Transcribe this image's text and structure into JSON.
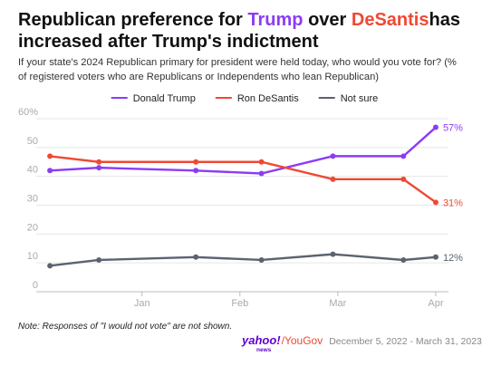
{
  "chart_data": {
    "type": "line",
    "title_parts": [
      "Republican preference for ",
      "Trump",
      " over ",
      "DeSantis",
      " has increased after Trump's indictment"
    ],
    "subtitle": "If your state's 2024 Republican primary for president were held today, who would you vote for? (% of registered voters who are Republicans or Independents who lean Republican)",
    "x": [
      0.06,
      0.56,
      1.55,
      2.22,
      2.95,
      3.67,
      4.0
    ],
    "xlim": [
      -0.08,
      4.13
    ],
    "xticks": [
      {
        "value": 1,
        "label": "Jan"
      },
      {
        "value": 2,
        "label": "Feb"
      },
      {
        "value": 3,
        "label": "Mar"
      },
      {
        "value": 4,
        "label": "Apr"
      }
    ],
    "ylim": [
      0,
      60
    ],
    "yticks": [
      0,
      10,
      20,
      30,
      40,
      50,
      {
        "value": 60,
        "label": "60%"
      }
    ],
    "grid": true,
    "legend": "top",
    "series": [
      {
        "name": "Donald Trump",
        "color": "#8b3cf6",
        "values": [
          42,
          43,
          42,
          41,
          47,
          47,
          57
        ],
        "value_labels": [
          null,
          null,
          null,
          null,
          null,
          null,
          "57%"
        ]
      },
      {
        "name": "Ron DeSantis",
        "color": "#ef4934",
        "values": [
          47,
          45,
          45,
          45,
          39,
          39,
          31
        ],
        "value_labels": [
          null,
          null,
          null,
          null,
          null,
          null,
          "31%"
        ]
      },
      {
        "name": "Not sure",
        "color": "#5c6270",
        "values": [
          9,
          11,
          12,
          11,
          13,
          11,
          12
        ],
        "value_labels": [
          null,
          null,
          null,
          null,
          null,
          null,
          "12%"
        ]
      }
    ],
    "note": "Note: Responses of \"I would not vote\" are not shown.",
    "footer": {
      "logo": [
        "yahoo!",
        "news",
        "/YouGov"
      ],
      "date_range": "December 5, 2022 - March 31, 2023"
    }
  }
}
